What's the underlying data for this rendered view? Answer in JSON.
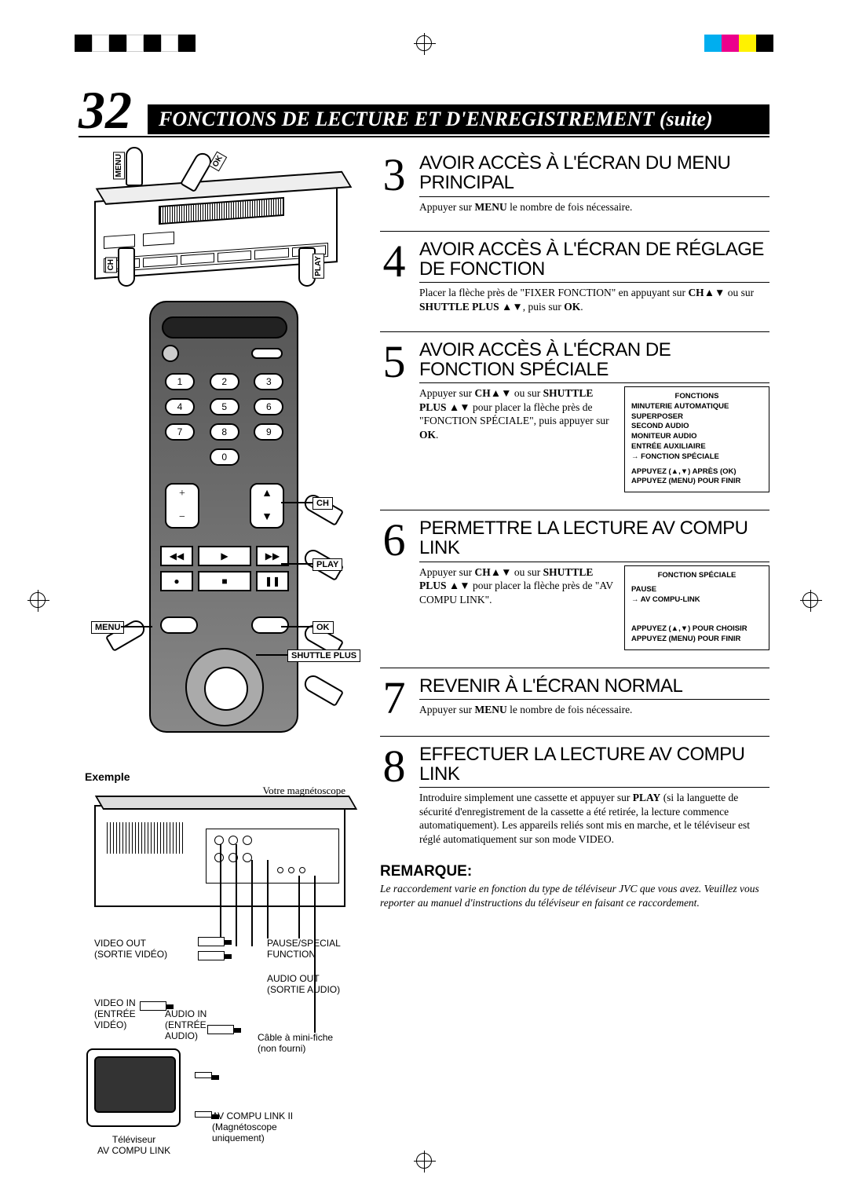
{
  "colors": {
    "bars_left": [
      "#000000",
      "#ffffff",
      "#000000",
      "#ffffff",
      "#000000",
      "#ffffff",
      "#000000"
    ],
    "bars_right": [
      "#00aeef",
      "#ec008c",
      "#fff200",
      "#000000"
    ],
    "text": "#000000",
    "bg": "#ffffff"
  },
  "header": {
    "page_number": "32",
    "title": "FONCTIONS DE LECTURE ET D'ENREGISTREMENT (suite)"
  },
  "left": {
    "vcr_front_labels": {
      "menu": "MENU",
      "ok": "OK",
      "ch": "CH",
      "play": "PLAY"
    },
    "remote_labels": {
      "ch": "CH",
      "play": "PLAY",
      "ok": "OK",
      "menu": "MENU",
      "shuttle": "SHUTTLE PLUS",
      "keys": [
        "1",
        "2",
        "3",
        "4",
        "5",
        "6",
        "7",
        "8",
        "9",
        "0"
      ],
      "rocker_left_top": "+",
      "rocker_left_bot": "−",
      "rocker_right_top": "▲",
      "rocker_right_bot": "▼"
    },
    "example_label": "Exemple",
    "vcr_rear_caption": "Votre magnétoscope",
    "rear_labels": {
      "video_out": "VIDEO OUT\n(SORTIE VIDÉO)",
      "pause_special": "PAUSE/SPECIAL\nFUNCTION",
      "audio_out": "AUDIO OUT\n(SORTIE AUDIO)",
      "video_in": "VIDEO IN\n(ENTRÉE\nVIDÉO)",
      "audio_in": "AUDIO IN\n(ENTRÉE\nAUDIO)",
      "mini_cable": "Câble à mini-fiche\n(non fourni)",
      "av_compu_link": "AV COMPU LINK II\n(Magnétoscope\nuniquement)",
      "tv": "Téléviseur\nAV COMPU LINK"
    }
  },
  "steps": [
    {
      "num": "3",
      "title": "AVOIR ACCÈS À L'ÉCRAN DU MENU PRINCIPAL",
      "text": "Appuyer sur <b>MENU</b> le nombre de fois nécessaire."
    },
    {
      "num": "4",
      "title": "AVOIR ACCÈS À L'ÉCRAN DE RÉGLAGE DE FONCTION",
      "text": "Placer la flèche près de \"FIXER FONCTION\" en appuyant sur <b>CH</b>▲▼ ou sur <b>SHUTTLE PLUS</b> ▲▼, puis sur <b>OK</b>."
    },
    {
      "num": "5",
      "title": "AVOIR ACCÈS À L'ÉCRAN DE FONCTION SPÉCIALE",
      "text": "Appuyer sur <b>CH</b>▲▼ ou sur <b>SHUTTLE PLUS</b> ▲▼ pour placer la flèche près de \"FONCTION SPÉCIALE\", puis appuyer sur <b>OK</b>.",
      "osd": {
        "title": "FONCTIONS",
        "items": [
          "MINUTERIE AUTOMATIQUE",
          "SUPERPOSER",
          "SECOND AUDIO",
          "MONITEUR AUDIO",
          "ENTRÉE AUXILIAIRE"
        ],
        "arrow_item": "FONCTION SPÉCIALE",
        "footer1": "APPUYEZ (▲,▼) APRÈS (OK)",
        "footer2": "APPUYEZ (MENU) POUR FINIR"
      }
    },
    {
      "num": "6",
      "title": "PERMETTRE LA LECTURE AV COMPU LINK",
      "text": "Appuyer sur <b>CH</b>▲▼ ou sur <b>SHUTTLE PLUS</b> ▲▼ pour placer la flèche près de \"AV COMPU LINK\".",
      "osd": {
        "title": "FONCTION SPÉCIALE",
        "items": [
          "PAUSE"
        ],
        "arrow_item": "AV COMPU-LINK",
        "footer1": "APPUYEZ (▲,▼) POUR CHOISIR",
        "footer2": "APPUYEZ (MENU) POUR FINIR"
      }
    },
    {
      "num": "7",
      "title": "REVENIR À L'ÉCRAN NORMAL",
      "text": "Appuyer sur <b>MENU</b> le nombre de fois nécessaire."
    },
    {
      "num": "8",
      "title": "EFFECTUER LA LECTURE AV COMPU LINK",
      "text": "Introduire simplement une cassette et appuyer sur <b>PLAY</b> (si la languette de sécurité d'enregistrement de la cassette a été retirée, la lecture commence automatiquement). Les appareils reliés sont mis en marche, et le téléviseur est réglé automatiquement sur son mode VIDEO."
    }
  ],
  "remarque": {
    "title": "REMARQUE:",
    "text": "Le raccordement varie en fonction du type de téléviseur JVC que vous avez. Veuillez vous reporter au manuel d'instructions du téléviseur en faisant ce raccordement."
  }
}
